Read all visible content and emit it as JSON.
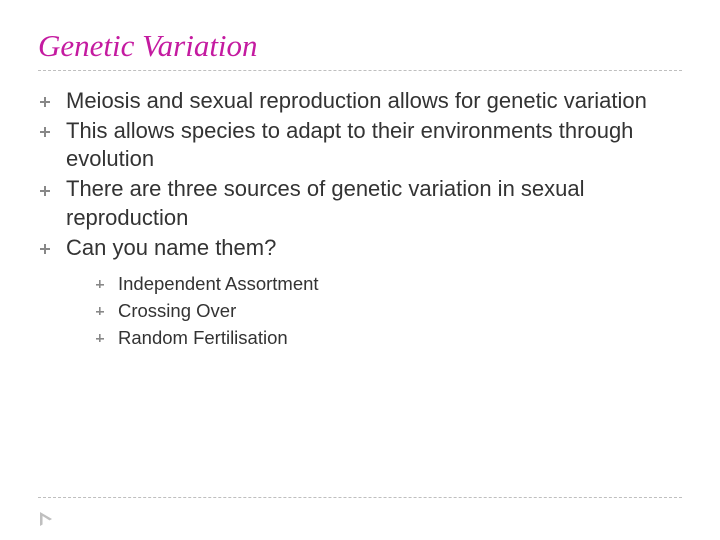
{
  "colors": {
    "title": "#c41aa0",
    "divider": "#bfbfbf",
    "body_text": "#333333",
    "bullet": "#888888",
    "arrow": "#bfbfbf",
    "background": "#ffffff"
  },
  "typography": {
    "title_font": "Comic Sans MS",
    "title_fontsize": 31,
    "title_style": "italic",
    "body_font": "Arial",
    "body_fontsize": 22,
    "sub_fontsize": 18.5
  },
  "title": "Genetic Variation",
  "bullets": [
    {
      "text": "Meiosis and sexual reproduction allows for genetic variation"
    },
    {
      "text": "This allows species to adapt to their environments through evolution"
    },
    {
      "text": "There are three sources of genetic variation in sexual reproduction"
    },
    {
      "text": "Can you name them?"
    }
  ],
  "sub_bullets": [
    {
      "text": "Independent Assortment"
    },
    {
      "text": "Crossing Over"
    },
    {
      "text": "Random Fertilisation"
    }
  ]
}
